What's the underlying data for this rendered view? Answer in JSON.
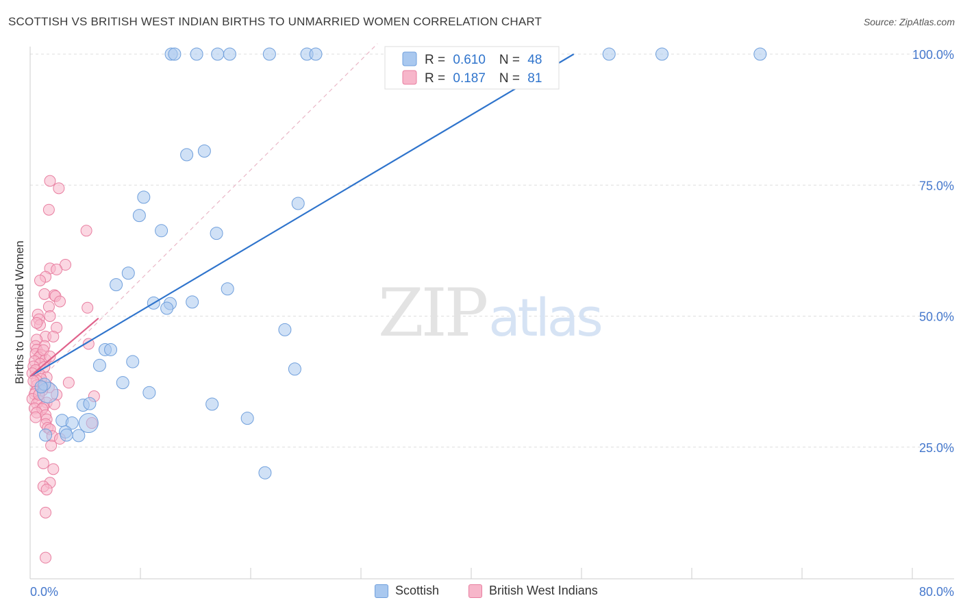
{
  "title": "SCOTTISH VS BRITISH WEST INDIAN BIRTHS TO UNMARRIED WOMEN CORRELATION CHART",
  "source": "Source: ZipAtlas.com",
  "watermark": {
    "part1": "ZIP",
    "part2": "atlas"
  },
  "colors": {
    "blue_fill": "#a9c8ef",
    "blue_stroke": "#6f9fdc",
    "blue_line": "#2f74cc",
    "pink_fill": "#f7b6ca",
    "pink_stroke": "#e87ea0",
    "pink_line": "#e0628b",
    "axis_text": "#4477cc",
    "grid": "#dddddd"
  },
  "legend_top": [
    {
      "r_label": "R = ",
      "r_value": "0.610",
      "n_label": "N = ",
      "n_value": "48",
      "color": "blue"
    },
    {
      "r_label": "R = ",
      "r_value": "0.187",
      "n_label": "N = ",
      "n_value": "81",
      "color": "pink"
    }
  ],
  "legend_bottom": [
    {
      "label": "Scottish",
      "color": "blue"
    },
    {
      "label": "British West Indians",
      "color": "pink"
    }
  ],
  "chart_data": {
    "type": "scatter",
    "xlabel": "",
    "ylabel": "Births to Unmarried Women",
    "xlim": [
      0,
      80
    ],
    "ylim": [
      0,
      102
    ],
    "x_tick_labels": [
      {
        "value": 0,
        "label": "0.0%"
      },
      {
        "value": 80,
        "label": "80.0%"
      }
    ],
    "y_tick_labels": [
      {
        "value": 25,
        "label": "25.0%"
      },
      {
        "value": 50,
        "label": "50.0%"
      },
      {
        "value": 75,
        "label": "75.0%"
      },
      {
        "value": 100,
        "label": "100.0%"
      }
    ],
    "series": [
      {
        "name": "Scottish",
        "color": "blue",
        "trend": {
          "x0": 0,
          "y0": 38.5,
          "x1": 49.3,
          "y1": 100.0
        },
        "points": [
          [
            12.8,
            100
          ],
          [
            13.1,
            100
          ],
          [
            15.1,
            100
          ],
          [
            17.0,
            100
          ],
          [
            18.1,
            100
          ],
          [
            21.7,
            100
          ],
          [
            25.1,
            100
          ],
          [
            25.9,
            100
          ],
          [
            52.5,
            100
          ],
          [
            57.3,
            100
          ],
          [
            66.2,
            100
          ],
          [
            14.2,
            80.8
          ],
          [
            15.8,
            81.5
          ],
          [
            10.3,
            72.7
          ],
          [
            9.9,
            69.2
          ],
          [
            11.9,
            66.3
          ],
          [
            16.9,
            65.8
          ],
          [
            24.3,
            71.5
          ],
          [
            8.9,
            58.2
          ],
          [
            7.8,
            56.0
          ],
          [
            17.9,
            55.2
          ],
          [
            11.2,
            52.5
          ],
          [
            12.7,
            52.4
          ],
          [
            12.4,
            51.5
          ],
          [
            14.7,
            52.7
          ],
          [
            23.1,
            47.4
          ],
          [
            6.8,
            43.6
          ],
          [
            7.3,
            43.6
          ],
          [
            6.3,
            40.6
          ],
          [
            9.3,
            41.3
          ],
          [
            24.0,
            39.9
          ],
          [
            8.4,
            37.3
          ],
          [
            10.8,
            35.4
          ],
          [
            4.8,
            33.0
          ],
          [
            5.4,
            33.3
          ],
          [
            16.5,
            33.2
          ],
          [
            19.7,
            30.5
          ],
          [
            2.9,
            30.1
          ],
          [
            3.8,
            29.6
          ],
          [
            5.3,
            29.6
          ],
          [
            3.2,
            27.9
          ],
          [
            4.4,
            27.2
          ],
          [
            1.4,
            27.3
          ],
          [
            3.3,
            27.3
          ],
          [
            21.3,
            20.1
          ],
          [
            1.6,
            35.4
          ],
          [
            1.3,
            37.0
          ],
          [
            1.0,
            36.5
          ]
        ]
      },
      {
        "name": "British West Indians",
        "color": "pink",
        "trend": {
          "x0": 0,
          "y0": 38.5,
          "x1": 6.2,
          "y1": 49.6
        },
        "points": [
          [
            1.8,
            75.8
          ],
          [
            2.6,
            74.4
          ],
          [
            1.7,
            70.3
          ],
          [
            5.1,
            66.3
          ],
          [
            3.2,
            59.8
          ],
          [
            1.8,
            59.1
          ],
          [
            2.4,
            58.9
          ],
          [
            1.4,
            57.5
          ],
          [
            0.9,
            56.8
          ],
          [
            1.3,
            54.2
          ],
          [
            2.2,
            54.0
          ],
          [
            2.3,
            53.8
          ],
          [
            2.7,
            52.8
          ],
          [
            1.7,
            51.8
          ],
          [
            5.2,
            51.6
          ],
          [
            0.7,
            50.3
          ],
          [
            1.8,
            50.0
          ],
          [
            0.8,
            49.4
          ],
          [
            0.9,
            48.3
          ],
          [
            2.4,
            47.8
          ],
          [
            1.4,
            46.1
          ],
          [
            2.1,
            46.1
          ],
          [
            0.6,
            45.5
          ],
          [
            0.5,
            44.3
          ],
          [
            1.3,
            44.3
          ],
          [
            0.6,
            43.6
          ],
          [
            0.5,
            42.8
          ],
          [
            1.0,
            42.6
          ],
          [
            0.8,
            42.1
          ],
          [
            1.4,
            41.7
          ],
          [
            0.4,
            41.4
          ],
          [
            0.9,
            40.9
          ],
          [
            0.3,
            40.4
          ],
          [
            1.3,
            40.3
          ],
          [
            0.5,
            39.7
          ],
          [
            0.2,
            39.1
          ],
          [
            0.9,
            38.8
          ],
          [
            1.5,
            38.3
          ],
          [
            1.0,
            38.0
          ],
          [
            0.6,
            37.7
          ],
          [
            3.5,
            37.3
          ],
          [
            0.6,
            36.8
          ],
          [
            1.2,
            36.5
          ],
          [
            1.7,
            36.4
          ],
          [
            1.1,
            35.8
          ],
          [
            0.5,
            35.5
          ],
          [
            0.4,
            35.1
          ],
          [
            2.4,
            35.0
          ],
          [
            5.8,
            34.7
          ],
          [
            0.2,
            34.2
          ],
          [
            0.8,
            33.8
          ],
          [
            1.5,
            33.5
          ],
          [
            0.6,
            33.3
          ],
          [
            2.2,
            33.2
          ],
          [
            1.2,
            32.6
          ],
          [
            0.4,
            32.4
          ],
          [
            1.1,
            32.3
          ],
          [
            0.6,
            31.6
          ],
          [
            1.4,
            31.1
          ],
          [
            0.5,
            30.7
          ],
          [
            1.5,
            30.3
          ],
          [
            5.6,
            29.6
          ],
          [
            1.4,
            29.4
          ],
          [
            1.6,
            28.7
          ],
          [
            1.8,
            28.4
          ],
          [
            2.0,
            27.1
          ],
          [
            2.7,
            26.6
          ],
          [
            1.9,
            25.3
          ],
          [
            1.2,
            21.9
          ],
          [
            2.1,
            20.8
          ],
          [
            1.8,
            18.2
          ],
          [
            1.2,
            17.5
          ],
          [
            1.5,
            16.9
          ],
          [
            1.4,
            12.5
          ],
          [
            1.4,
            3.9
          ],
          [
            0.3,
            37.6
          ],
          [
            0.8,
            35.0
          ],
          [
            1.2,
            43.5
          ],
          [
            1.8,
            42.3
          ],
          [
            0.6,
            48.7
          ],
          [
            5.3,
            44.7
          ]
        ]
      }
    ],
    "identity_line": {
      "x0": 0,
      "y0": 36.0,
      "x1": 31.5,
      "y1": 102.0
    }
  }
}
